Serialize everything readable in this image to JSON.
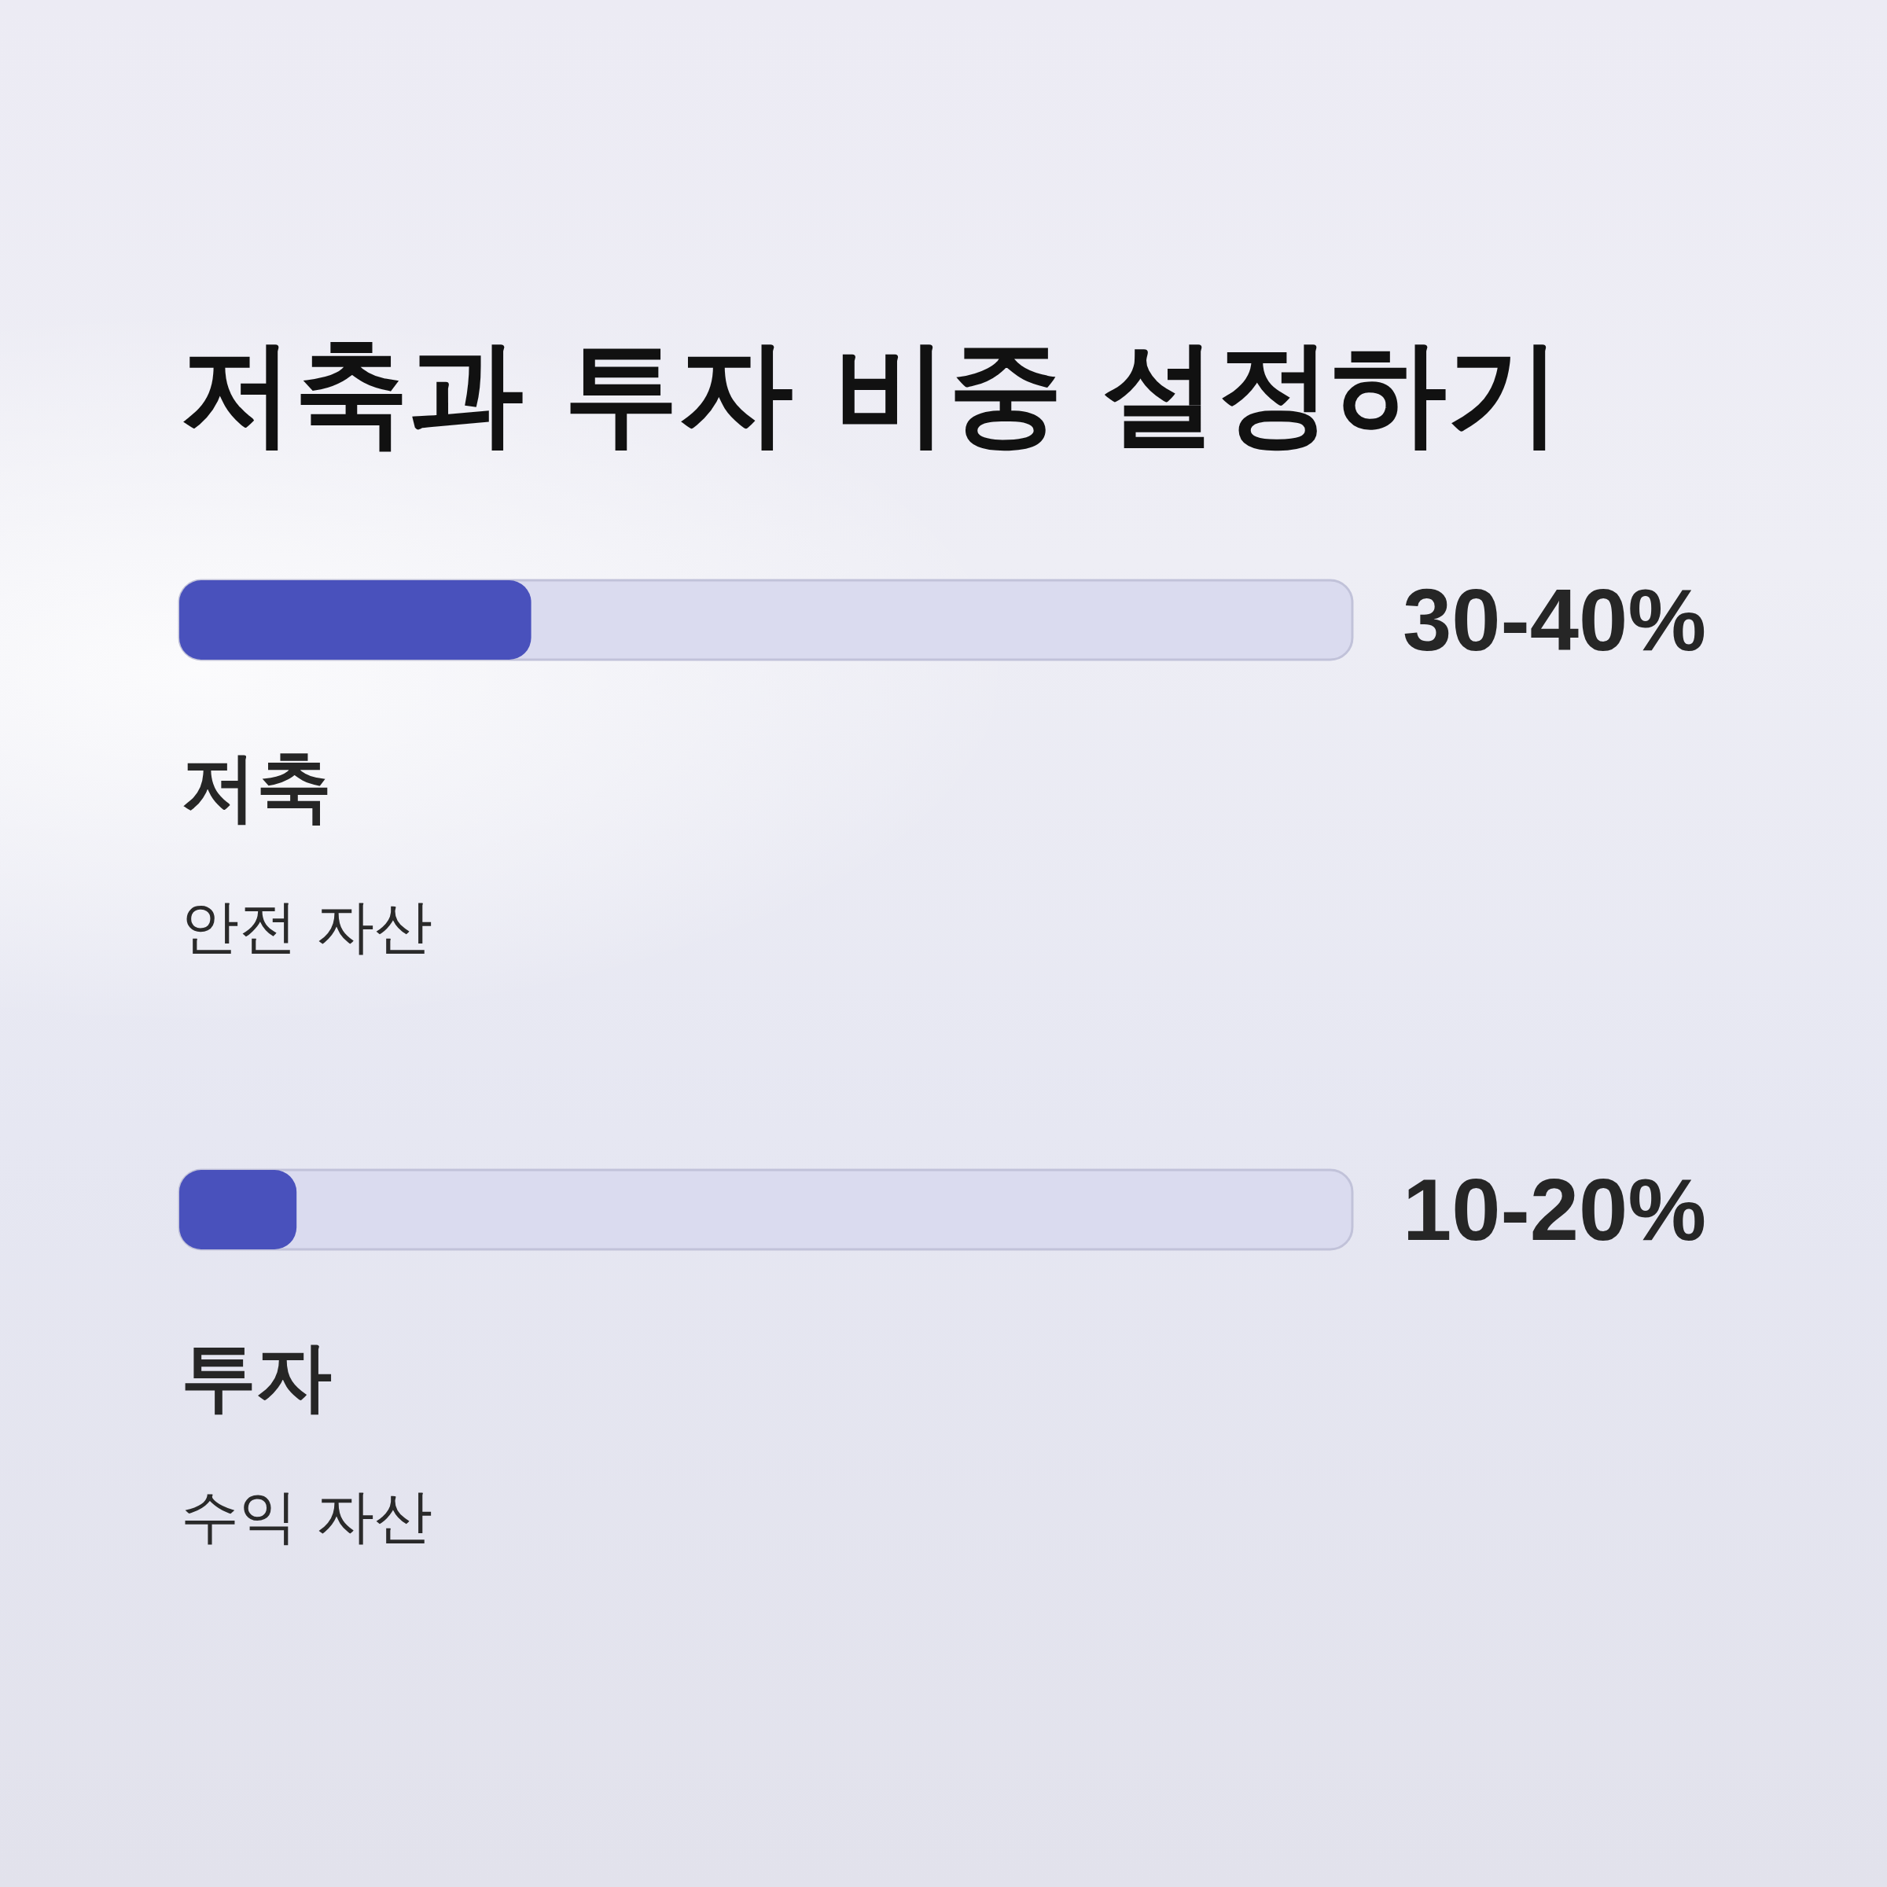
{
  "chart_data": {
    "type": "bar",
    "orientation": "horizontal",
    "title": "저축과 투자 비중 설정하기",
    "categories": [
      "저축",
      "투자"
    ],
    "values": [
      30,
      10
    ],
    "value_labels": [
      "30-40%",
      "10-20%"
    ],
    "color": "#4951bc",
    "xlim": [
      0,
      100
    ],
    "tick_labels": "y",
    "annotations": [
      "안전 자산",
      "수익 자산"
    ]
  }
}
